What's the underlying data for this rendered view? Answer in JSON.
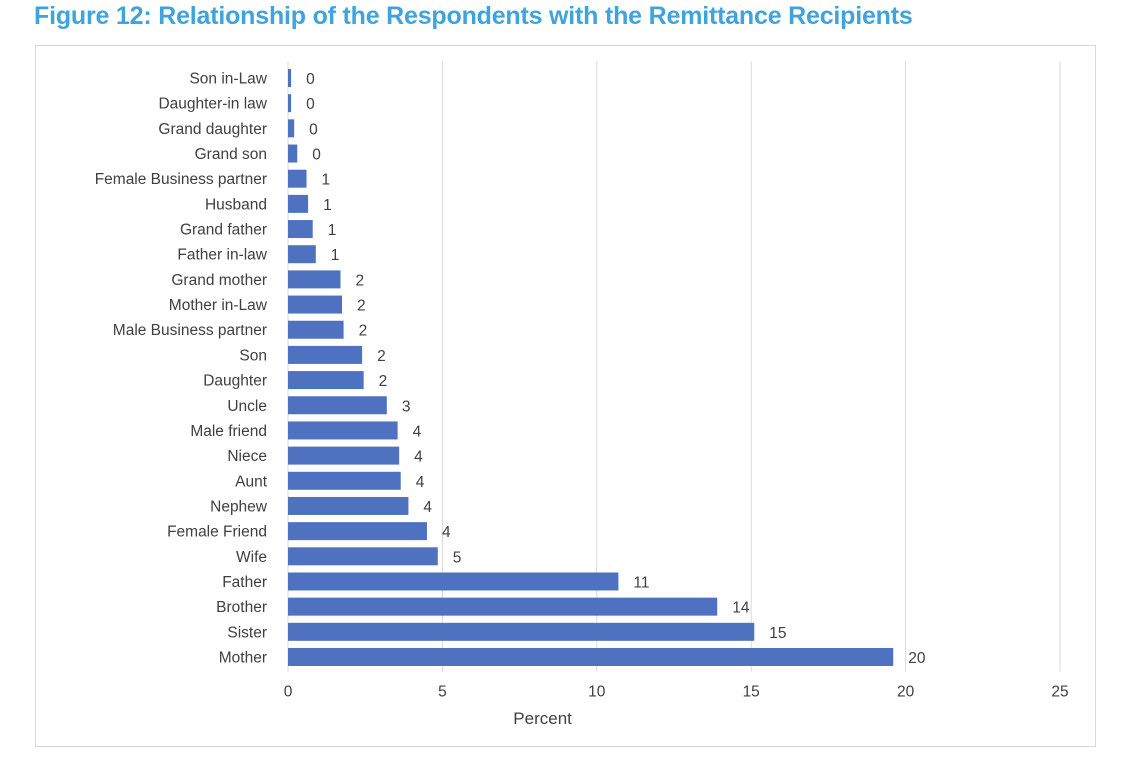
{
  "figure": {
    "title": "Figure 12: Relationship of the Respondents with the Remittance Recipients"
  },
  "colors": {
    "bar": "#4e72c0",
    "grid": "#d9d9d9",
    "title": "#3fa3dc",
    "text": "#404040"
  },
  "chart_data": {
    "type": "bar",
    "orientation": "horizontal",
    "title": "Figure 12: Relationship of the Respondents with the Remittance Recipients",
    "xlabel": "Percent",
    "ylabel": "",
    "xlim": [
      0,
      25
    ],
    "xticks": [
      0,
      5,
      10,
      15,
      20,
      25
    ],
    "grid": "vertical",
    "categories": [
      "Son in-Law",
      "Daughter-in law",
      "Grand daughter",
      "Grand son",
      "Female Business partner",
      "Husband",
      "Grand father",
      "Father in-law",
      "Grand mother",
      "Mother in-Law",
      "Male Business partner",
      "Son",
      "Daughter",
      "Uncle",
      "Male friend",
      "Niece",
      "Aunt",
      "Nephew",
      "Female Friend",
      "Wife",
      "Father",
      "Brother",
      "Sister",
      "Mother"
    ],
    "values": [
      0.1,
      0.1,
      0.2,
      0.3,
      0.6,
      0.65,
      0.8,
      0.9,
      1.7,
      1.75,
      1.8,
      2.4,
      2.45,
      3.2,
      3.55,
      3.6,
      3.65,
      3.9,
      4.5,
      4.85,
      10.7,
      13.9,
      15.1,
      19.6
    ],
    "data_labels": [
      "0",
      "0",
      "0",
      "0",
      "1",
      "1",
      "1",
      "1",
      "2",
      "2",
      "2",
      "2",
      "2",
      "3",
      "4",
      "4",
      "4",
      "4",
      "4",
      "5",
      "11",
      "14",
      "15",
      "20"
    ]
  }
}
